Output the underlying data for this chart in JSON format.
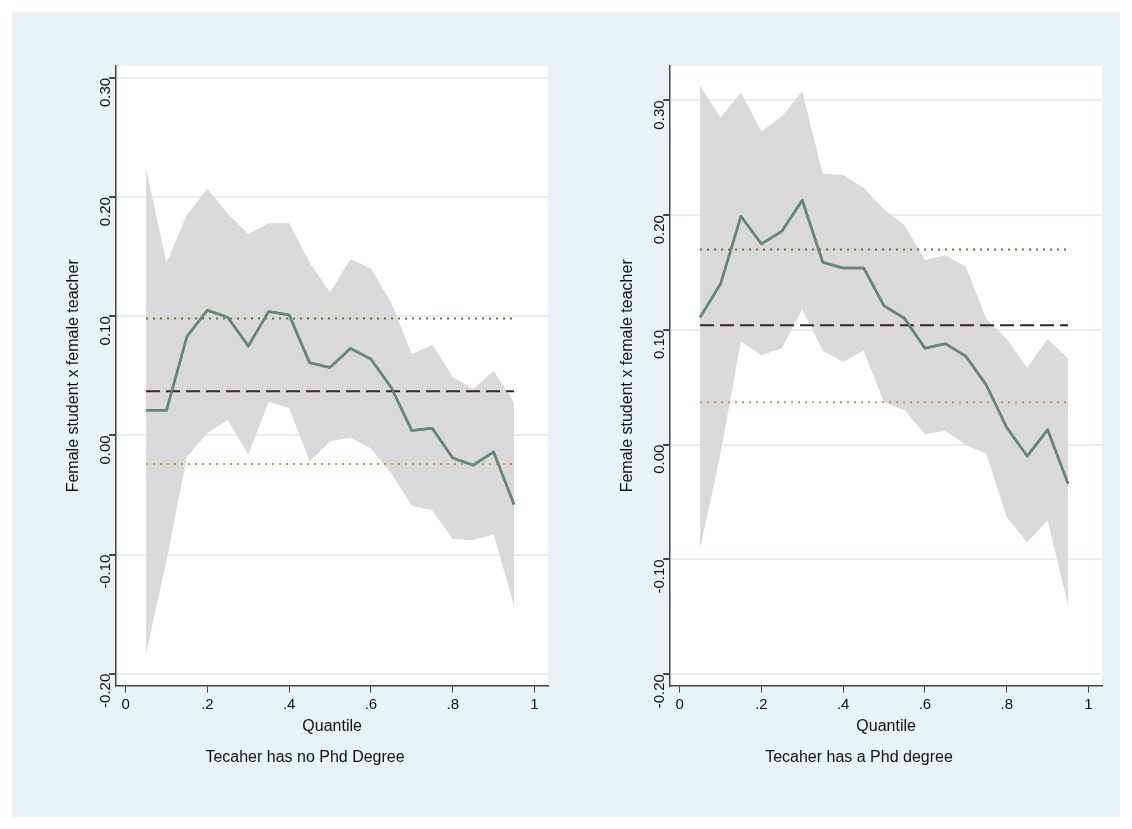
{
  "chart_data": [
    {
      "type": "line",
      "title": "Tecaher has no Phd Degree",
      "xlabel": "Quantile",
      "ylabel": "Female student x female teacher",
      "x": [
        0.05,
        0.1,
        0.15,
        0.2,
        0.25,
        0.3,
        0.35,
        0.4,
        0.45,
        0.5,
        0.55,
        0.6,
        0.65,
        0.7,
        0.75,
        0.8,
        0.85,
        0.9,
        0.95
      ],
      "xlim": [
        -0.023,
        1.033
      ],
      "xticks": [
        {
          "value": 0,
          "label": "0"
        },
        {
          "value": 0.2,
          "label": ".2"
        },
        {
          "value": 0.4,
          "label": ".4"
        },
        {
          "value": 0.6,
          "label": ".6"
        },
        {
          "value": 0.8,
          "label": ".8"
        },
        {
          "value": 1,
          "label": "1"
        }
      ],
      "ylim": [
        -0.21,
        0.31
      ],
      "yticks": [
        {
          "value": -0.2,
          "label": "-0.20"
        },
        {
          "value": -0.1,
          "label": "-0.10"
        },
        {
          "value": 0,
          "label": "0.00"
        },
        {
          "value": 0.1,
          "label": "0.10"
        },
        {
          "value": 0.2,
          "label": "0.20"
        },
        {
          "value": 0.3,
          "label": "0.30"
        }
      ],
      "grid": "y",
      "legend": false,
      "series": [
        {
          "color": "#5f8a76",
          "line_style": "solid",
          "values": [
            0.021,
            0.021,
            0.083,
            0.105,
            0.099,
            0.075,
            0.104,
            0.101,
            0.061,
            0.057,
            0.073,
            0.064,
            0.04,
            0.004,
            0.006,
            -0.019,
            -0.025,
            -0.014,
            -0.058
          ],
          "lower": [
            -0.183,
            -0.105,
            -0.018,
            0.002,
            0.013,
            -0.016,
            0.028,
            0.023,
            -0.022,
            -0.005,
            -0.002,
            -0.011,
            -0.032,
            -0.059,
            -0.063,
            -0.087,
            -0.088,
            -0.083,
            -0.143
          ],
          "upper": [
            0.224,
            0.145,
            0.185,
            0.207,
            0.186,
            0.169,
            0.178,
            0.178,
            0.145,
            0.12,
            0.148,
            0.14,
            0.111,
            0.068,
            0.076,
            0.049,
            0.039,
            0.054,
            0.028
          ]
        }
      ],
      "ref_lines": [
        {
          "axis": "y",
          "value": 0.037,
          "color": "#3a2424",
          "line_style": "dashed"
        },
        {
          "axis": "y",
          "value": 0.098,
          "color": "#5a7a2a",
          "line_style": "dotted"
        },
        {
          "axis": "y",
          "value": -0.024,
          "color": "#e08a2a",
          "line_style": "dotted"
        }
      ]
    },
    {
      "type": "line",
      "title": "Tecaher has a Phd degree",
      "xlabel": "Quantile",
      "ylabel": "Female student x female teacher",
      "x": [
        0.05,
        0.1,
        0.15,
        0.2,
        0.25,
        0.3,
        0.35,
        0.4,
        0.45,
        0.5,
        0.55,
        0.6,
        0.65,
        0.7,
        0.75,
        0.8,
        0.85,
        0.9,
        0.95
      ],
      "xlim": [
        -0.023,
        1.033
      ],
      "xticks": [
        {
          "value": 0,
          "label": "0"
        },
        {
          "value": 0.2,
          "label": ".2"
        },
        {
          "value": 0.4,
          "label": ".4"
        },
        {
          "value": 0.6,
          "label": ".6"
        },
        {
          "value": 0.8,
          "label": ".8"
        },
        {
          "value": 1,
          "label": "1"
        }
      ],
      "ylim": [
        -0.21,
        0.33
      ],
      "yticks": [
        {
          "value": -0.2,
          "label": "-0.20"
        },
        {
          "value": -0.1,
          "label": "-0.10"
        },
        {
          "value": 0,
          "label": "0.00"
        },
        {
          "value": 0.1,
          "label": "0.10"
        },
        {
          "value": 0.2,
          "label": "0.20"
        },
        {
          "value": 0.3,
          "label": "0.30"
        }
      ],
      "grid": "y",
      "legend": false,
      "series": [
        {
          "color": "#5f8a76",
          "line_style": "solid",
          "values": [
            0.111,
            0.14,
            0.199,
            0.175,
            0.186,
            0.213,
            0.159,
            0.154,
            0.154,
            0.121,
            0.11,
            0.084,
            0.088,
            0.077,
            0.052,
            0.015,
            -0.01,
            0.013,
            -0.034
          ],
          "lower": [
            -0.091,
            -0.008,
            0.09,
            0.078,
            0.084,
            0.118,
            0.082,
            0.072,
            0.082,
            0.037,
            0.03,
            0.009,
            0.012,
            0.0,
            -0.008,
            -0.063,
            -0.085,
            -0.066,
            -0.14
          ],
          "upper": [
            0.313,
            0.285,
            0.307,
            0.273,
            0.286,
            0.308,
            0.236,
            0.235,
            0.224,
            0.205,
            0.191,
            0.161,
            0.165,
            0.155,
            0.11,
            0.092,
            0.067,
            0.092,
            0.075
          ]
        }
      ],
      "ref_lines": [
        {
          "axis": "y",
          "value": 0.104,
          "color": "#3a2424",
          "line_style": "dashed"
        },
        {
          "axis": "y",
          "value": 0.17,
          "color": "#5a7a2a",
          "line_style": "dotted"
        },
        {
          "axis": "y",
          "value": 0.037,
          "color": "#e08a2a",
          "line_style": "dotted"
        }
      ]
    }
  ]
}
